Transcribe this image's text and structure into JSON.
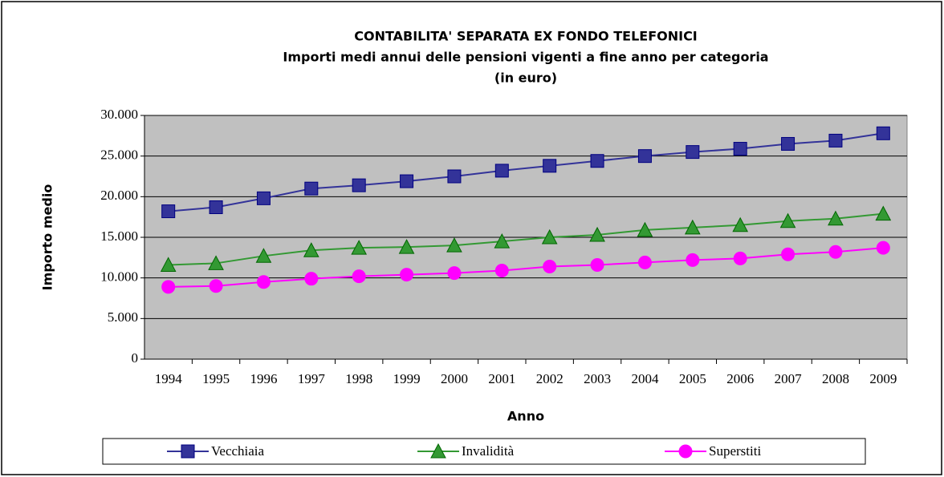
{
  "chart_data": {
    "type": "line",
    "title": [
      "CONTABILITA' SEPARATA EX FONDO TELEFONICI",
      "Importi medi annui delle pensioni vigenti a fine anno per categoria",
      "(in euro)"
    ],
    "x_label": "Anno",
    "y_label": "Importo medio",
    "categories": [
      "1994",
      "1995",
      "1996",
      "1997",
      "1998",
      "1999",
      "2000",
      "2001",
      "2002",
      "2003",
      "2004",
      "2005",
      "2006",
      "2007",
      "2008",
      "2009"
    ],
    "series": [
      {
        "name": "Vecchiaia",
        "color": "#333399",
        "marker": "square",
        "values": [
          18200,
          18700,
          19800,
          21000,
          21400,
          21900,
          22500,
          23200,
          23800,
          24400,
          25000,
          25500,
          25900,
          26500,
          26900,
          27800
        ]
      },
      {
        "name": "Invalidità",
        "color": "#339933",
        "marker": "triangle",
        "values": [
          11600,
          11800,
          12700,
          13400,
          13700,
          13800,
          14000,
          14500,
          15000,
          15300,
          15900,
          16200,
          16500,
          17000,
          17300,
          17900
        ]
      },
      {
        "name": "Superstiti",
        "color": "#ff00ff",
        "marker": "circle",
        "values": [
          8900,
          9000,
          9500,
          9900,
          10200,
          10400,
          10600,
          10900,
          11400,
          11600,
          11900,
          12200,
          12400,
          12900,
          13200,
          13700
        ]
      }
    ],
    "ylim": [
      0,
      30000
    ],
    "yticks": [
      0,
      {
        "value": 5000,
        "label": "5.000"
      },
      {
        "value": 10000,
        "label": "10.000"
      },
      {
        "value": 15000,
        "label": "15.000"
      },
      {
        "value": 20000,
        "label": "20.000"
      },
      {
        "value": 25000,
        "label": "25.000"
      },
      {
        "value": 30000,
        "label": "30.000"
      }
    ],
    "grid": true,
    "legend": "bottom",
    "plot_background": "#c0c0c0"
  }
}
